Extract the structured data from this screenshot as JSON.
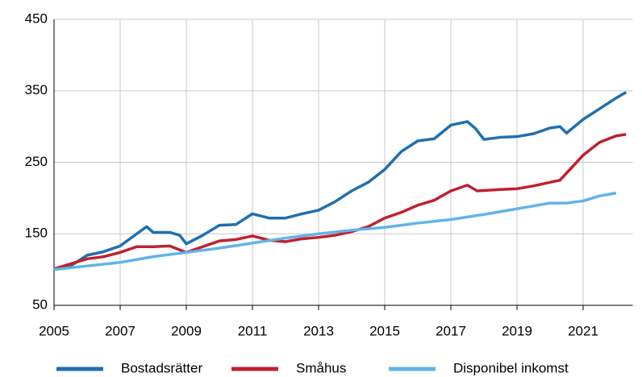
{
  "chart_data": {
    "type": "line",
    "xlim": [
      2005,
      2022.5
    ],
    "xticks": [
      2005,
      2007,
      2009,
      2011,
      2013,
      2015,
      2017,
      2019,
      2021
    ],
    "ylim": [
      50,
      450
    ],
    "yticks": [
      50,
      150,
      250,
      350,
      450
    ],
    "grid": true,
    "legend": "bottom",
    "series": [
      {
        "name": "Bostadsrätter",
        "color": "#1f6fb0",
        "x": [
          2005,
          2005.5,
          2006,
          2006.5,
          2007,
          2007.5,
          2007.8,
          2008,
          2008.5,
          2008.8,
          2009,
          2009.5,
          2010,
          2010.5,
          2011,
          2011.5,
          2012,
          2012.5,
          2013,
          2013.5,
          2014,
          2014.5,
          2015,
          2015.5,
          2016,
          2016.5,
          2017,
          2017.5,
          2017.75,
          2018,
          2018.5,
          2019,
          2019.5,
          2020,
          2020.3,
          2020.5,
          2021,
          2021.5,
          2022,
          2022.3
        ],
        "values": [
          101,
          105,
          120,
          125,
          133,
          150,
          160,
          152,
          152,
          148,
          136,
          148,
          162,
          163,
          178,
          172,
          172,
          178,
          183,
          195,
          210,
          222,
          240,
          265,
          280,
          283,
          302,
          307,
          297,
          282,
          285,
          286,
          290,
          298,
          300,
          291,
          310,
          325,
          340,
          348
        ]
      },
      {
        "name": "Småhus",
        "color": "#c0202e",
        "x": [
          2005,
          2005.5,
          2006,
          2006.5,
          2007,
          2007.5,
          2008,
          2008.5,
          2009,
          2009.5,
          2010,
          2010.5,
          2011,
          2011.5,
          2012,
          2012.5,
          2013,
          2013.5,
          2014,
          2014.5,
          2015,
          2015.5,
          2016,
          2016.5,
          2017,
          2017.5,
          2017.8,
          2018.5,
          2019,
          2019.5,
          2020,
          2020.3,
          2020.6,
          2021,
          2021.5,
          2022,
          2022.3
        ],
        "values": [
          101,
          108,
          115,
          118,
          124,
          132,
          132,
          133,
          124,
          132,
          140,
          142,
          147,
          141,
          139,
          143,
          145,
          148,
          153,
          160,
          172,
          180,
          190,
          197,
          210,
          218,
          210,
          212,
          213,
          217,
          222,
          225,
          240,
          260,
          278,
          287,
          289
        ]
      },
      {
        "name": "Disponibel inkomst",
        "color": "#5fb4e8",
        "x": [
          2005,
          2006,
          2007,
          2008,
          2009,
          2010,
          2011,
          2012,
          2013,
          2014,
          2015,
          2016,
          2017,
          2018,
          2019,
          2020,
          2020.5,
          2021,
          2021.5,
          2022
        ],
        "values": [
          100,
          105,
          110,
          118,
          124,
          130,
          137,
          144,
          150,
          155,
          159,
          165,
          170,
          177,
          185,
          193,
          193,
          196,
          203,
          207
        ]
      }
    ]
  }
}
